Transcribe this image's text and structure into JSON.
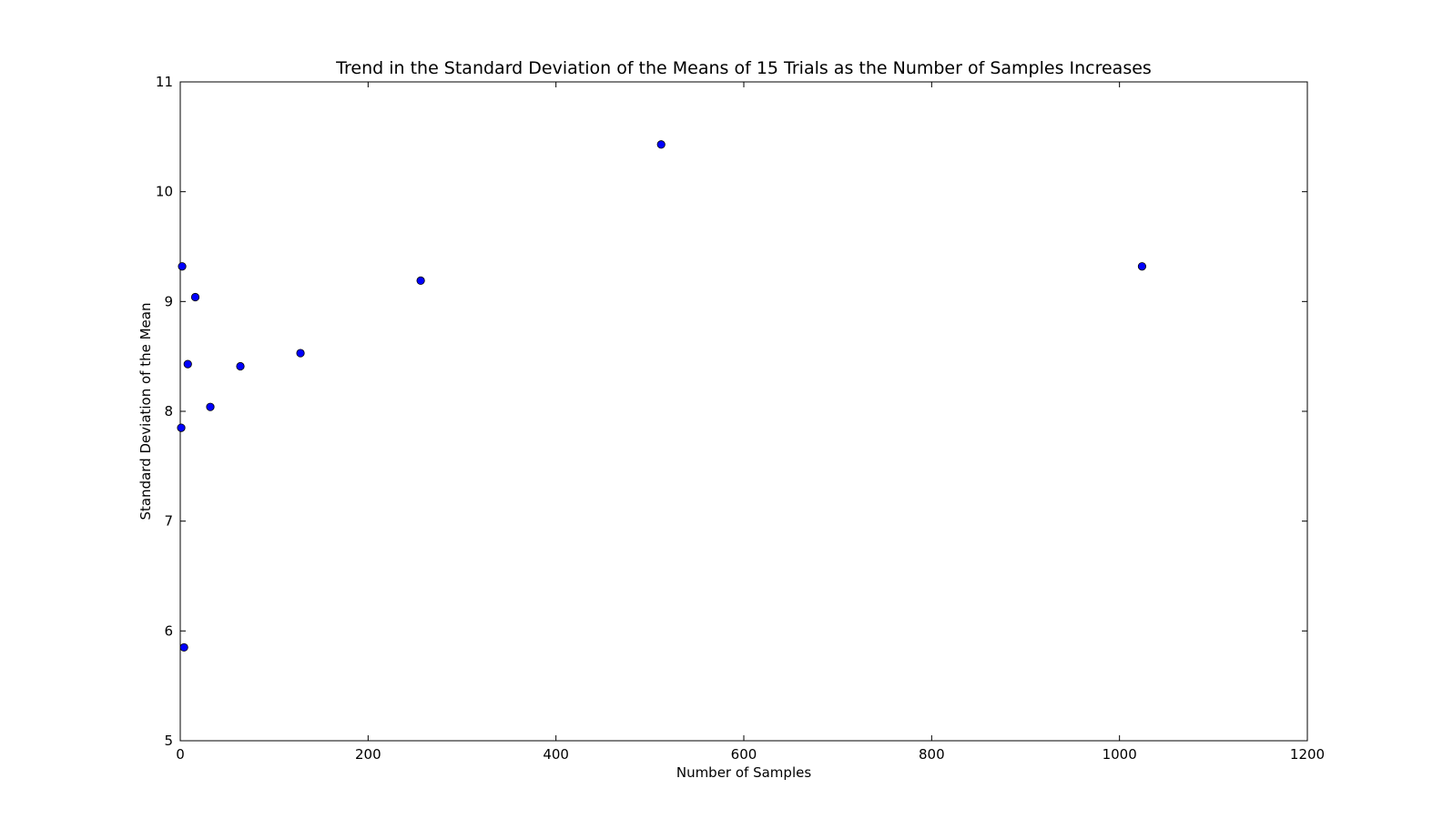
{
  "chart_data": {
    "type": "scatter",
    "title": "Trend in the Standard Deviation of the Means of 15 Trials as the Number of Samples Increases",
    "xlabel": "Number of Samples",
    "ylabel": "Standard Deviation of the Mean",
    "xlim": [
      0,
      1200
    ],
    "ylim": [
      5,
      11
    ],
    "xticks": [
      0,
      200,
      400,
      600,
      800,
      1000,
      1200
    ],
    "xtick_labels": [
      "0",
      "200",
      "400",
      "600",
      "800",
      "1000",
      "1200"
    ],
    "yticks": [
      5,
      6,
      7,
      8,
      9,
      10,
      11
    ],
    "ytick_labels": [
      "5",
      "6",
      "7",
      "8",
      "9",
      "10",
      "11"
    ],
    "grid": false,
    "marker_color": "#0000ff",
    "series": [
      {
        "x": [
          1,
          2,
          4,
          8,
          16,
          32,
          64,
          128,
          256,
          512,
          1024
        ],
        "y": [
          7.85,
          9.32,
          5.85,
          8.43,
          9.04,
          8.04,
          8.41,
          8.53,
          9.19,
          10.43,
          9.32
        ]
      }
    ]
  }
}
